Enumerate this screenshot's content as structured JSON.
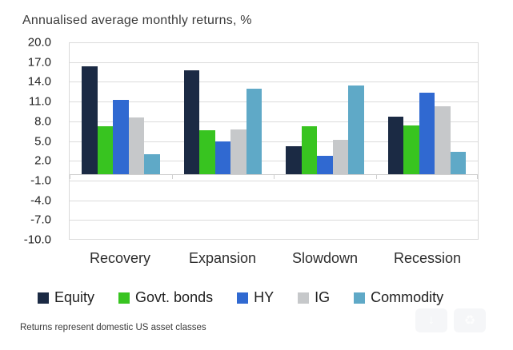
{
  "chart_data": {
    "type": "bar",
    "title": "Annualised average monthly returns, %",
    "categories": [
      "Recovery",
      "Expansion",
      "Slowdown",
      "Recession"
    ],
    "series": [
      {
        "name": "Equity",
        "color": "#1b2a44",
        "values": [
          16.3,
          15.8,
          4.2,
          8.7
        ]
      },
      {
        "name": "Govt. bonds",
        "color": "#38c420",
        "values": [
          7.3,
          6.6,
          7.2,
          7.4
        ]
      },
      {
        "name": "HY",
        "color": "#3069d1",
        "values": [
          11.2,
          5.0,
          2.8,
          12.4
        ]
      },
      {
        "name": "IG",
        "color": "#c6c8ca",
        "values": [
          8.6,
          6.8,
          5.2,
          10.3
        ]
      },
      {
        "name": "Commodity",
        "color": "#5fa9c7",
        "values": [
          3.0,
          13.0,
          13.4,
          3.4
        ]
      }
    ],
    "ylim": [
      -10,
      20
    ],
    "yticks": [
      "20.0",
      "17.0",
      "14.0",
      "11.0",
      "8.0",
      "5.0",
      "2.0",
      "-1.0",
      "-4.0",
      "-7.0",
      "-10.0"
    ],
    "grid": true,
    "grid_color": "#dbdbdb",
    "legend_position": "bottom",
    "xlabel": "",
    "ylabel": ""
  },
  "footnote": "Returns represent domestic US asset classes",
  "overlay": {
    "buttons": [
      {
        "name": "download-button",
        "icon": "download-icon",
        "glyph": "↓"
      },
      {
        "name": "recycle-button",
        "icon": "recycle-icon",
        "glyph": "♻"
      }
    ]
  }
}
